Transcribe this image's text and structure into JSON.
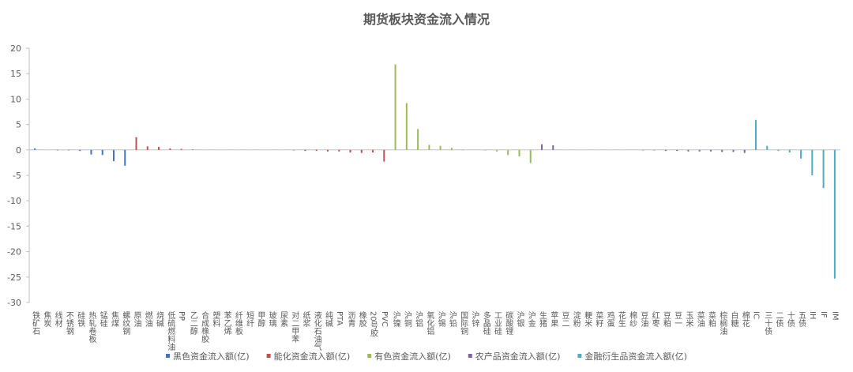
{
  "chart_data": {
    "type": "bar",
    "title": "期货板块资金流入情况",
    "categories": [
      "铁矿石",
      "焦炭",
      "线材",
      "不锈钢",
      "硅铁",
      "热轧卷板",
      "锰硅",
      "焦煤",
      "螺纹钢",
      "原油",
      "燃油",
      "烧碱",
      "低硫燃料油",
      "PP",
      "乙二醇",
      "合成橡胶",
      "塑料",
      "苯乙烯",
      "纤维板",
      "短纤",
      "甲醇",
      "玻璃",
      "尿素",
      "对二甲苯",
      "纸浆",
      "液化石油气",
      "纯碱",
      "PTA",
      "沥青",
      "橡胶",
      "20号胶",
      "PVC",
      "沪镍",
      "沪铜",
      "沪铝",
      "氧化铝",
      "沪锡",
      "沪铅",
      "国际铜",
      "沪锌",
      "多晶硅",
      "工业硅",
      "碳酸锂",
      "沪银",
      "沪金",
      "生猪",
      "苹果",
      "豆二",
      "淀粉",
      "粳米",
      "菜籽",
      "鸡蛋",
      "花生",
      "棉纱",
      "豆油",
      "红枣",
      "豆粕",
      "豆一",
      "玉米",
      "菜油",
      "菜粕",
      "棕榈油",
      "白糖",
      "棉花",
      "IC",
      "三十债",
      "二债",
      "十债",
      "五债",
      "IH",
      "IF",
      "IM"
    ],
    "series": [
      {
        "name": "黑色资金流入额(亿)",
        "color": "#4472c4",
        "values": [
          0.3,
          0,
          -0.1,
          -0.1,
          -0.2,
          -0.9,
          -1.0,
          -2.2,
          -3.1,
          null,
          null,
          null,
          null,
          null,
          null,
          null,
          null,
          null,
          null,
          null,
          null,
          null,
          null,
          null,
          null,
          null,
          null,
          null,
          null,
          null,
          null,
          null,
          null,
          null,
          null,
          null,
          null,
          null,
          null,
          null,
          null,
          null,
          null,
          null,
          null,
          null,
          null,
          null,
          null,
          null,
          null,
          null,
          null,
          null,
          null,
          null,
          null,
          null,
          null,
          null,
          null,
          null,
          null,
          null,
          null,
          null,
          null,
          null,
          null,
          null,
          null,
          null
        ]
      },
      {
        "name": "能化资金流入额(亿)",
        "color": "#c0504d",
        "values": [
          null,
          null,
          null,
          null,
          null,
          null,
          null,
          null,
          null,
          2.5,
          0.7,
          0.6,
          0.3,
          0.2,
          0.1,
          0,
          0,
          0,
          0,
          0,
          0,
          0,
          0,
          -0.1,
          -0.2,
          -0.2,
          -0.3,
          -0.3,
          -0.5,
          -0.6,
          -0.5,
          -2.3,
          null,
          null,
          null,
          null,
          null,
          null,
          null,
          null,
          null,
          null,
          null,
          null,
          null,
          null,
          null,
          null,
          null,
          null,
          null,
          null,
          null,
          null,
          null,
          null,
          null,
          null,
          null,
          null,
          null,
          null,
          null,
          null,
          null,
          null,
          null,
          null,
          null,
          null,
          null,
          null
        ]
      },
      {
        "name": "有色资金流入额(亿)",
        "color": "#9bbb59",
        "values": [
          null,
          null,
          null,
          null,
          null,
          null,
          null,
          null,
          null,
          null,
          null,
          null,
          null,
          null,
          null,
          null,
          null,
          null,
          null,
          null,
          null,
          null,
          null,
          null,
          null,
          null,
          null,
          null,
          null,
          null,
          null,
          null,
          16.8,
          9.2,
          4.1,
          1.0,
          0.8,
          0.4,
          0.1,
          0,
          -0.1,
          -0.3,
          -1.0,
          -1.3,
          -2.6,
          null,
          null,
          null,
          null,
          null,
          null,
          null,
          null,
          null,
          null,
          null,
          null,
          null,
          null,
          null,
          null,
          null,
          null,
          null,
          null,
          null,
          null,
          null,
          null,
          null,
          null,
          null
        ]
      },
      {
        "name": "农产品资金流入额(亿)",
        "color": "#8064a2",
        "values": [
          null,
          null,
          null,
          null,
          null,
          null,
          null,
          null,
          null,
          null,
          null,
          null,
          null,
          null,
          null,
          null,
          null,
          null,
          null,
          null,
          null,
          null,
          null,
          null,
          null,
          null,
          null,
          null,
          null,
          null,
          null,
          null,
          null,
          null,
          null,
          null,
          null,
          null,
          null,
          null,
          null,
          null,
          null,
          null,
          null,
          1.1,
          0.9,
          0,
          0,
          0,
          0,
          0,
          0,
          0,
          -0.1,
          -0.1,
          -0.2,
          -0.2,
          -0.3,
          -0.3,
          -0.3,
          -0.4,
          -0.4,
          -0.6,
          null,
          null,
          null,
          null,
          null,
          null,
          null,
          null
        ]
      },
      {
        "name": "金融衍生品资金流入额(亿)",
        "color": "#4bacc6",
        "values": [
          null,
          null,
          null,
          null,
          null,
          null,
          null,
          null,
          null,
          null,
          null,
          null,
          null,
          null,
          null,
          null,
          null,
          null,
          null,
          null,
          null,
          null,
          null,
          null,
          null,
          null,
          null,
          null,
          null,
          null,
          null,
          null,
          null,
          null,
          null,
          null,
          null,
          null,
          null,
          null,
          null,
          null,
          null,
          null,
          null,
          null,
          null,
          null,
          null,
          null,
          null,
          null,
          null,
          null,
          null,
          null,
          null,
          null,
          null,
          null,
          null,
          null,
          null,
          null,
          5.9,
          0.8,
          -0.2,
          -0.5,
          -1.7,
          -5.0,
          -7.5,
          -25.3
        ]
      }
    ],
    "ylim": [
      -30,
      20
    ],
    "yticks": [
      -30,
      -25,
      -20,
      -15,
      -10,
      -5,
      0,
      5,
      10,
      15,
      20
    ],
    "legend": "bottom"
  }
}
